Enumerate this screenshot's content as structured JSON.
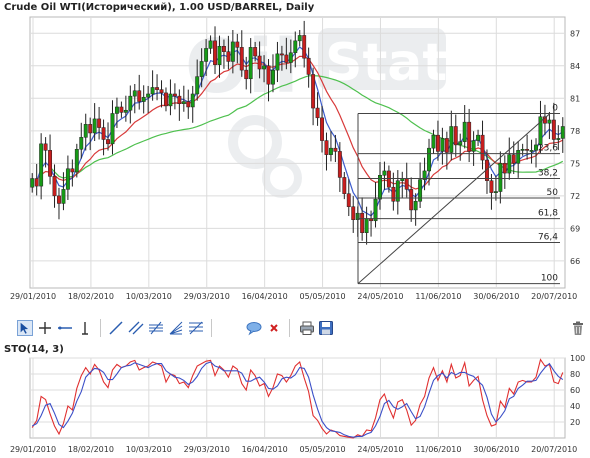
{
  "title": "Crude Oil WTI(Исторический), 1.00 USD/BARREL, Daily",
  "colors": {
    "up": "#169a16",
    "down": "#c81e1e",
    "wick": "#222222",
    "ma_fast": "#3c5ccd",
    "ma_mid": "#d83a3a",
    "ma_slow": "#4ec04e",
    "grid": "#dcdcdc",
    "fib": "#444444",
    "sto_k": "#e03030",
    "sto_d": "#3c50c8"
  },
  "toolbar": {
    "tools": [
      {
        "name": "cursor-tool-button",
        "icon": "cursor-icon"
      },
      {
        "name": "crosshair-tool-button",
        "icon": "crosshair-icon"
      },
      {
        "name": "horizontal-line-tool-button",
        "icon": "horizontal-line-icon"
      },
      {
        "name": "vertical-line-tool-button",
        "icon": "vertical-line-icon"
      },
      {
        "name": "trend-line-tool-button",
        "icon": "trend-line-icon"
      },
      {
        "name": "channel-tool-button",
        "icon": "channel-icon"
      },
      {
        "name": "parallel-lines-tool-button",
        "icon": "parallel-lines-icon"
      },
      {
        "name": "fib-fan-tool-button",
        "icon": "fan-icon"
      },
      {
        "name": "fib-retracement-tool-button",
        "icon": "fib-icon"
      },
      {
        "name": "comment-tool-button",
        "icon": "speech-bubble-icon"
      },
      {
        "name": "delete-object-button",
        "icon": "close-icon"
      },
      {
        "name": "print-button",
        "icon": "printer-icon"
      },
      {
        "name": "save-button",
        "icon": "floppy-icon"
      },
      {
        "name": "trash-button",
        "icon": "trash-icon"
      }
    ]
  },
  "chart_data": [
    {
      "type": "candlestick",
      "title": "Crude Oil WTI(Исторический), 1.00 USD/BARREL, Daily",
      "x_tick_labels": [
        "29/01/2010",
        "18/02/2010",
        "10/03/2010",
        "29/03/2010",
        "16/04/2010",
        "05/05/2010",
        "24/05/2010",
        "11/06/2010",
        "30/06/2010",
        "20/07/2010"
      ],
      "y_tick_labels": [
        66,
        69,
        72,
        75,
        78,
        81,
        84,
        87
      ],
      "ylim": [
        63.5,
        88.5
      ],
      "grid": true,
      "watermark": "OilStat",
      "close": [
        73.6,
        72.9,
        76.8,
        76.2,
        73.8,
        72.0,
        71.3,
        72.6,
        74.5,
        74.2,
        76.3,
        77.4,
        78.6,
        77.8,
        79.1,
        78.3,
        77.2,
        76.8,
        79.6,
        80.2,
        79.7,
        79.9,
        81.2,
        81.7,
        80.7,
        81.1,
        81.4,
        82.0,
        81.8,
        81.5,
        80.3,
        81.4,
        81.2,
        80.5,
        80.7,
        80.2,
        81.4,
        83.0,
        84.4,
        85.6,
        86.3,
        84.1,
        85.8,
        85.3,
        84.4,
        86.2,
        85.7,
        83.6,
        82.8,
        85.7,
        84.9,
        83.7,
        84.0,
        82.3,
        83.6,
        85.1,
        85.0,
        84.3,
        85.2,
        86.3,
        86.8,
        84.7,
        83.2,
        80.1,
        79.2,
        77.1,
        75.8,
        76.4,
        76.1,
        73.7,
        72.2,
        71.0,
        69.8,
        70.4,
        68.6,
        69.9,
        69.7,
        71.7,
        73.9,
        74.3,
        72.8,
        71.5,
        73.4,
        73.6,
        72.6,
        70.7,
        71.5,
        73.5,
        74.3,
        76.4,
        77.6,
        76.1,
        77.3,
        76.0,
        78.4,
        76.7,
        77.0,
        78.8,
        76.1,
        77.1,
        77.6,
        75.3,
        73.4,
        72.3,
        72.4,
        75.0,
        74.1,
        75.8,
        75.0,
        76.2,
        76.3,
        76.2,
        76.2,
        76.7,
        79.3,
        78.7,
        79.0,
        77.2,
        77.3,
        78.4
      ]
    },
    {
      "type": "line",
      "title": "STO(14, 3)",
      "x_tick_labels": [
        "29/01/2010",
        "18/02/2010",
        "10/03/2010",
        "29/03/2010",
        "16/04/2010",
        "05/05/2010",
        "24/05/2010",
        "11/06/2010",
        "30/06/2010",
        "20/07/2010"
      ],
      "y_tick_labels": [
        20,
        40,
        60,
        80,
        100
      ],
      "ylim": [
        0,
        100
      ],
      "series": [
        {
          "values": [
            13,
            22,
            52,
            48,
            30,
            15,
            5,
            18,
            40,
            35,
            62,
            78,
            88,
            80,
            92,
            85,
            70,
            63,
            85,
            92,
            88,
            90,
            95,
            97,
            85,
            88,
            90,
            95,
            93,
            90,
            70,
            80,
            78,
            68,
            70,
            63,
            78,
            90,
            93,
            96,
            97,
            78,
            90,
            85,
            76,
            90,
            86,
            68,
            60,
            85,
            78,
            65,
            68,
            52,
            63,
            80,
            78,
            70,
            78,
            90,
            95,
            75,
            58,
            28,
            22,
            12,
            5,
            10,
            8,
            3,
            2,
            1,
            0,
            4,
            2,
            10,
            9,
            25,
            48,
            55,
            38,
            25,
            45,
            48,
            35,
            16,
            22,
            42,
            52,
            75,
            88,
            72,
            84,
            70,
            92,
            75,
            78,
            94,
            65,
            72,
            77,
            48,
            28,
            15,
            17,
            46,
            38,
            62,
            55,
            70,
            72,
            70,
            70,
            76,
            98,
            90,
            92,
            70,
            68,
            82
          ]
        },
        {
          "values": [
            15,
            18,
            28,
            41,
            43,
            31,
            17,
            13,
            21,
            31,
            46,
            58,
            76,
            82,
            87,
            86,
            82,
            73,
            73,
            80,
            88,
            90,
            91,
            94,
            92,
            90,
            88,
            91,
            93,
            93,
            84,
            80,
            76,
            75,
            72,
            67,
            70,
            77,
            87,
            93,
            95,
            90,
            88,
            84,
            84,
            84,
            84,
            81,
            71,
            71,
            74,
            76,
            70,
            62,
            61,
            65,
            74,
            76,
            75,
            79,
            88,
            87,
            76,
            54,
            36,
            21,
            13,
            9,
            8,
            7,
            4,
            2,
            1,
            2,
            2,
            5,
            7,
            15,
            27,
            43,
            47,
            39,
            36,
            39,
            43,
            33,
            24,
            27,
            39,
            56,
            72,
            78,
            81,
            75,
            82,
            79,
            82,
            82,
            79,
            77,
            71,
            66,
            51,
            30,
            20,
            26,
            34,
            49,
            52,
            62,
            66,
            71,
            71,
            72,
            81,
            88,
            93,
            84,
            77,
            73
          ]
        }
      ]
    }
  ],
  "fibonacci": {
    "levels": [
      {
        "label": "0",
        "value": 79.6
      },
      {
        "label": "23,6",
        "value": 75.9
      },
      {
        "label": "38,2",
        "value": 73.6
      },
      {
        "label": "50",
        "value": 71.8
      },
      {
        "label": "61,8",
        "value": 69.9
      },
      {
        "label": "76,4",
        "value": 67.7
      },
      {
        "label": "100",
        "value": 63.9
      }
    ],
    "low_value": 63.9,
    "high_value": 79.6
  }
}
